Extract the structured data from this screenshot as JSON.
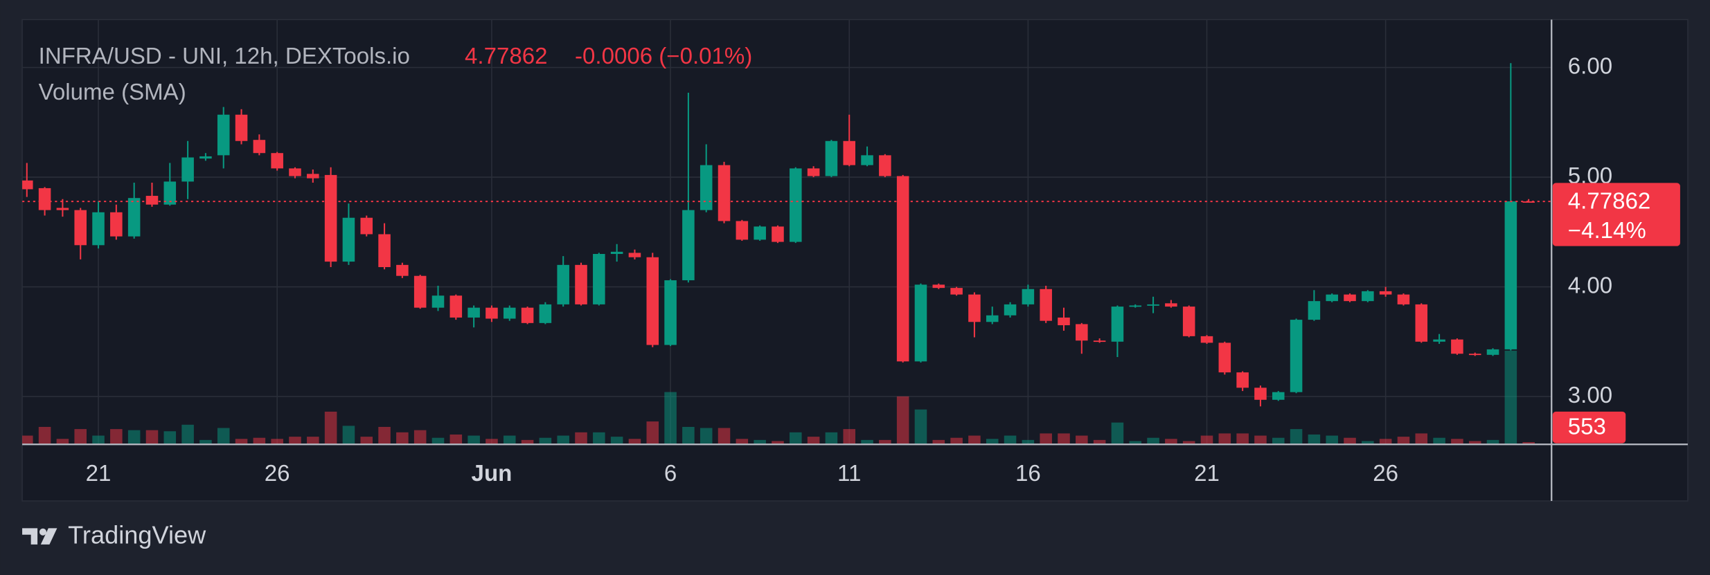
{
  "brand": "TradingView",
  "chart_data": {
    "type": "candlestick",
    "title": "INFRA/USD - UNI, 12h, DEXTools.io",
    "change": "-0.0006 (−0.01%)",
    "change_pct": {
      "value": -4.14,
      "label": "−4.14%"
    },
    "volume_title": "Volume (SMA)",
    "up_color": "#089981",
    "down_color": "#f23645",
    "grid": true,
    "x": [
      19,
      19.5,
      20,
      20.5,
      21,
      21.5,
      22,
      22.5,
      23,
      23.5,
      24,
      24.5,
      25,
      25.5,
      26,
      26.5,
      27,
      27.5,
      28,
      28.5,
      29,
      29.5,
      30,
      30.5,
      31,
      31.5,
      32,
      32.5,
      33,
      33.5,
      34,
      34.5,
      35,
      35.5,
      36,
      36.5,
      37,
      37.5,
      38,
      38.5,
      39,
      39.5,
      40,
      40.5,
      41,
      41.5,
      42,
      42.5,
      43,
      43.5,
      44,
      44.5,
      45,
      45.5,
      46,
      46.5,
      47,
      47.5,
      48,
      48.5,
      49,
      49.5,
      50,
      50.5,
      51,
      51.5,
      52,
      52.5,
      53,
      53.5,
      54,
      54.5,
      55,
      55.5,
      56,
      56.5,
      57,
      57.5,
      58,
      58.5,
      59,
      59.5,
      60,
      60.5,
      61
    ],
    "open": [
      4.97,
      4.9,
      4.72,
      4.7,
      4.38,
      4.68,
      4.46,
      4.83,
      4.75,
      4.96,
      5.17,
      5.2,
      5.57,
      5.34,
      5.22,
      5.08,
      5.03,
      5.02,
      4.23,
      4.63,
      4.48,
      4.2,
      4.1,
      3.81,
      3.92,
      3.72,
      3.81,
      3.71,
      3.81,
      3.67,
      3.84,
      4.2,
      3.84,
      4.3,
      4.31,
      4.27,
      3.47,
      4.06,
      4.7,
      5.11,
      4.6,
      4.43,
      4.55,
      4.41,
      5.08,
      5.01,
      5.33,
      5.11,
      5.2,
      5.01,
      3.32,
      4.02,
      3.99,
      3.93,
      3.68,
      3.74,
      3.84,
      3.98,
      3.72,
      3.66,
      3.51,
      3.5,
      3.82,
      3.83,
      3.85,
      3.82,
      3.55,
      3.49,
      3.22,
      3.08,
      2.97,
      3.04,
      3.7,
      3.87,
      3.93,
      3.87,
      3.96,
      3.93,
      3.84,
      3.5,
      3.52,
      3.39,
      3.38,
      3.43,
      4.7792
    ],
    "high": [
      5.13,
      4.91,
      4.8,
      4.72,
      4.78,
      4.75,
      4.95,
      4.95,
      5.13,
      5.33,
      5.22,
      5.64,
      5.62,
      5.39,
      5.23,
      5.09,
      5.07,
      5.09,
      4.76,
      4.65,
      4.58,
      4.22,
      4.11,
      4.01,
      3.93,
      3.83,
      3.83,
      3.83,
      3.82,
      3.86,
      4.28,
      4.22,
      4.31,
      4.39,
      4.34,
      4.31,
      4.07,
      5.77,
      5.3,
      5.14,
      4.61,
      4.56,
      4.56,
      5.09,
      5.1,
      5.34,
      5.57,
      5.28,
      5.21,
      5.02,
      4.03,
      4.03,
      4.0,
      3.95,
      3.82,
      3.86,
      4.02,
      4.01,
      3.81,
      3.67,
      3.53,
      3.83,
      3.84,
      3.91,
      3.88,
      3.83,
      3.56,
      3.5,
      3.23,
      3.1,
      3.05,
      3.71,
      3.97,
      3.94,
      3.94,
      3.97,
      4.0,
      3.94,
      3.85,
      3.57,
      3.53,
      3.4,
      3.44,
      6.04,
      4.8
    ],
    "low": [
      4.82,
      4.65,
      4.64,
      4.25,
      4.35,
      4.43,
      4.44,
      4.73,
      4.74,
      4.8,
      5.15,
      5.08,
      5.3,
      5.2,
      5.06,
      4.99,
      4.95,
      4.18,
      4.2,
      4.46,
      4.16,
      4.08,
      3.8,
      3.78,
      3.7,
      3.63,
      3.68,
      3.69,
      3.66,
      3.66,
      3.82,
      3.83,
      3.83,
      4.23,
      4.25,
      3.45,
      3.46,
      4.04,
      4.68,
      4.58,
      4.42,
      4.42,
      4.4,
      4.4,
      5.0,
      5.0,
      5.1,
      5.1,
      5.0,
      3.31,
      3.31,
      3.98,
      3.92,
      3.54,
      3.66,
      3.72,
      3.82,
      3.67,
      3.6,
      3.39,
      3.49,
      3.36,
      3.81,
      3.76,
      3.81,
      3.54,
      3.48,
      3.2,
      3.05,
      2.91,
      2.96,
      3.03,
      3.69,
      3.86,
      3.86,
      3.86,
      3.91,
      3.83,
      3.49,
      3.48,
      3.38,
      3.37,
      3.37,
      3.42,
      4.77
    ],
    "close": [
      4.89,
      4.7,
      4.7,
      4.38,
      4.68,
      4.46,
      4.81,
      4.75,
      4.96,
      5.18,
      5.19,
      5.57,
      5.33,
      5.22,
      5.08,
      5.01,
      4.99,
      4.23,
      4.63,
      4.48,
      4.18,
      4.1,
      3.81,
      3.92,
      3.72,
      3.81,
      3.71,
      3.81,
      3.67,
      3.84,
      4.2,
      3.84,
      4.3,
      4.32,
      4.27,
      3.47,
      4.06,
      4.7,
      5.11,
      4.6,
      4.43,
      4.55,
      4.41,
      5.08,
      5.01,
      5.33,
      5.11,
      5.2,
      5.01,
      3.32,
      4.02,
      3.99,
      3.93,
      3.68,
      3.74,
      3.84,
      3.98,
      3.69,
      3.65,
      3.51,
      3.5,
      3.82,
      3.83,
      3.84,
      3.82,
      3.55,
      3.49,
      3.22,
      3.08,
      2.97,
      3.04,
      3.7,
      3.87,
      3.93,
      3.87,
      3.96,
      3.93,
      3.84,
      3.5,
      3.52,
      3.39,
      3.38,
      3.43,
      4.78,
      4.77862
    ],
    "volume": [
      2216,
      4432,
      1385,
      3878,
      2216,
      3878,
      3601,
      3601,
      3324,
      4986,
      1108,
      4155,
      1385,
      1662,
      1385,
      1939,
      1939,
      8310,
      4709,
      1939,
      4432,
      3047,
      3601,
      1662,
      2493,
      2216,
      1385,
      2216,
      1108,
      1662,
      2216,
      3047,
      3047,
      1939,
      1385,
      5817,
      13296,
      4432,
      4155,
      4155,
      1385,
      1108,
      831,
      3047,
      1939,
      3047,
      3878,
      1108,
      1108,
      12188,
      8864,
      1108,
      1662,
      2216,
      1385,
      2216,
      1108,
      2770,
      2770,
      2216,
      1108,
      5540,
      831,
      1662,
      1385,
      831,
      2216,
      2770,
      2770,
      2216,
      1662,
      3878,
      2493,
      2216,
      1662,
      831,
      1385,
      1939,
      2770,
      1662,
      1385,
      831,
      1108,
      23822,
      553
    ],
    "ylim": [
      2.564,
      6.437
    ],
    "yticks": [
      {
        "value": 3,
        "label": "3.00"
      },
      {
        "value": 4,
        "label": "4.00"
      },
      {
        "value": 5,
        "label": "5.00"
      },
      {
        "value": 6,
        "label": "6.00"
      }
    ],
    "xlim": [
      18.87,
      61.64
    ],
    "xticks": [
      21,
      26,
      {
        "value": 32,
        "label": "Jun"
      },
      {
        "value": 37,
        "label": "6"
      },
      {
        "value": 42,
        "label": "11"
      },
      {
        "value": 47,
        "label": "16"
      },
      {
        "value": 52,
        "label": "21"
      },
      {
        "value": 57,
        "label": "26"
      }
    ]
  }
}
